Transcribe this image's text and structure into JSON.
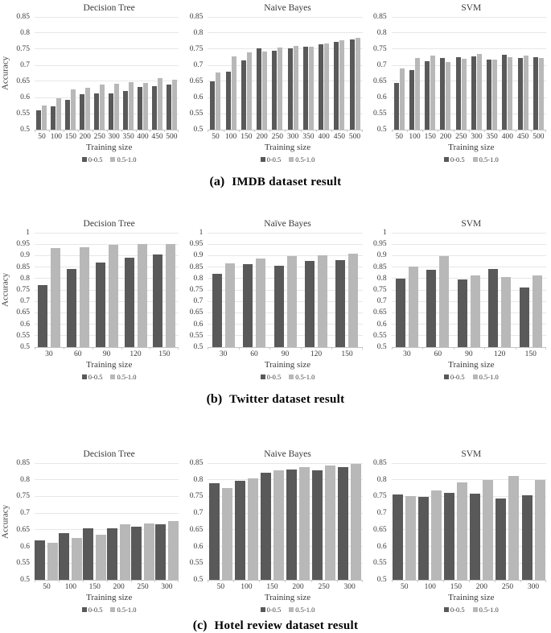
{
  "colors": {
    "series_dark": "#595959",
    "series_light": "#b8b8b8",
    "gridline": "#e7e7e7",
    "axis": "#c3c3c3",
    "text": "#3a3a3a"
  },
  "sections": [
    {
      "id": "imdb",
      "caption": {
        "label": "(a)",
        "text": "IMDB dataset result"
      },
      "chart_indexes": [
        0,
        1,
        2
      ]
    },
    {
      "id": "twitter",
      "caption": {
        "label": "(b)",
        "text": "Twitter dataset result"
      },
      "chart_indexes": [
        3,
        4,
        5
      ]
    },
    {
      "id": "hotel",
      "caption": {
        "label": "(c)",
        "text": "Hotel review dataset result"
      },
      "chart_indexes": [
        6,
        7,
        8
      ]
    }
  ],
  "chart_data": [
    {
      "type": "bar",
      "section": "imdb",
      "title": "Decision Tree",
      "xlabel": "Training size",
      "ylabel": "Accuracy",
      "ylim": [
        0.5,
        0.85
      ],
      "grid": true,
      "legend_position": "bottom",
      "yticks": [
        "0.85",
        "0.8",
        "0.75",
        "0.7",
        "0.65",
        "0.6",
        "0.55",
        "0.5"
      ],
      "categories": [
        "50",
        "100",
        "150",
        "200",
        "250",
        "300",
        "350",
        "400",
        "450",
        "500"
      ],
      "series": [
        {
          "name": "0-0.5",
          "values": [
            0.56,
            0.573,
            0.592,
            0.61,
            0.612,
            0.613,
            0.62,
            0.633,
            0.635,
            0.641
          ]
        },
        {
          "name": "0.5-1.0",
          "values": [
            0.576,
            0.598,
            0.625,
            0.63,
            0.64,
            0.643,
            0.648,
            0.645,
            0.66,
            0.655
          ]
        }
      ]
    },
    {
      "type": "bar",
      "section": "imdb",
      "title": "Naive Bayes",
      "xlabel": "Training size",
      "ylabel": "",
      "ylim": [
        0.5,
        0.85
      ],
      "grid": true,
      "legend_position": "bottom",
      "yticks": [
        "0.85",
        "0.8",
        "0.75",
        "0.7",
        "0.65",
        "0.6",
        "0.55",
        "0.5"
      ],
      "categories": [
        "50",
        "100",
        "150",
        "200",
        "250",
        "300",
        "350",
        "400",
        "450",
        "500"
      ],
      "series": [
        {
          "name": "0-0.5",
          "values": [
            0.65,
            0.68,
            0.715,
            0.752,
            0.746,
            0.752,
            0.758,
            0.764,
            0.772,
            0.781
          ]
        },
        {
          "name": "0.5-1.0",
          "values": [
            0.678,
            0.727,
            0.739,
            0.743,
            0.756,
            0.759,
            0.758,
            0.768,
            0.778,
            0.786
          ]
        }
      ]
    },
    {
      "type": "bar",
      "section": "imdb",
      "title": "SVM",
      "xlabel": "Training size",
      "ylabel": "",
      "ylim": [
        0.5,
        0.85
      ],
      "grid": true,
      "legend_position": "bottom",
      "yticks": [
        "0.85",
        "0.8",
        "0.75",
        "0.7",
        "0.65",
        "0.6",
        "0.55",
        "0.5"
      ],
      "categories": [
        "50",
        "100",
        "150",
        "200",
        "250",
        "300",
        "350",
        "400",
        "450",
        "500"
      ],
      "series": [
        {
          "name": "0-0.5",
          "values": [
            0.645,
            0.685,
            0.712,
            0.722,
            0.726,
            0.728,
            0.718,
            0.733,
            0.723,
            0.725
          ]
        },
        {
          "name": "0.5-1.0",
          "values": [
            0.69,
            0.723,
            0.73,
            0.711,
            0.721,
            0.734,
            0.717,
            0.726,
            0.731,
            0.723
          ]
        }
      ]
    },
    {
      "type": "bar",
      "section": "twitter",
      "title": "Decision Tree",
      "xlabel": "Training size",
      "ylabel": "Accuracy",
      "ylim": [
        0.5,
        1.0
      ],
      "grid": true,
      "legend_position": "bottom",
      "yticks": [
        "1",
        "0.95",
        "0.9",
        "0.85",
        "0.8",
        "0.75",
        "0.7",
        "0.65",
        "0.6",
        "0.55",
        "0.5"
      ],
      "categories": [
        "30",
        "60",
        "90",
        "120",
        "150"
      ],
      "series": [
        {
          "name": "0-0.5",
          "values": [
            0.77,
            0.84,
            0.87,
            0.89,
            0.905
          ]
        },
        {
          "name": "0.5-1.0",
          "values": [
            0.932,
            0.937,
            0.947,
            0.952,
            0.95
          ]
        }
      ]
    },
    {
      "type": "bar",
      "section": "twitter",
      "title": "Naïve Bayes",
      "xlabel": "Training size",
      "ylabel": "",
      "ylim": [
        0.5,
        1.0
      ],
      "grid": true,
      "legend_position": "bottom",
      "yticks": [
        "1",
        "0.95",
        "0.9",
        "0.85",
        "0.8",
        "0.75",
        "0.7",
        "0.65",
        "0.6",
        "0.55",
        "0.5"
      ],
      "categories": [
        "30",
        "60",
        "90",
        "120",
        "150"
      ],
      "series": [
        {
          "name": "0-0.5",
          "values": [
            0.82,
            0.864,
            0.855,
            0.877,
            0.88
          ]
        },
        {
          "name": "0.5-1.0",
          "values": [
            0.868,
            0.886,
            0.898,
            0.902,
            0.908
          ]
        }
      ]
    },
    {
      "type": "bar",
      "section": "twitter",
      "title": "SVM",
      "xlabel": "Training size",
      "ylabel": "",
      "ylim": [
        0.5,
        1.0
      ],
      "grid": true,
      "legend_position": "bottom",
      "yticks": [
        "1",
        "0.95",
        "0.9",
        "0.85",
        "0.8",
        "0.75",
        "0.7",
        "0.65",
        "0.6",
        "0.55",
        "0.5"
      ],
      "categories": [
        "30",
        "60",
        "90",
        "120",
        "150"
      ],
      "series": [
        {
          "name": "0-0.5",
          "values": [
            0.8,
            0.837,
            0.795,
            0.842,
            0.762
          ]
        },
        {
          "name": "0.5-1.0",
          "values": [
            0.853,
            0.897,
            0.814,
            0.807,
            0.814
          ]
        }
      ]
    },
    {
      "type": "bar",
      "section": "hotel",
      "title": "Decision Tree",
      "xlabel": "Training size",
      "ylabel": "Accuracy",
      "ylim": [
        0.5,
        0.85
      ],
      "grid": true,
      "legend_position": "bottom",
      "yticks": [
        "0.85",
        "0.8",
        "0.75",
        "0.7",
        "0.65",
        "0.6",
        "0.55",
        "0.5"
      ],
      "categories": [
        "50",
        "100",
        "150",
        "200",
        "250",
        "300"
      ],
      "series": [
        {
          "name": "0-0.5",
          "values": [
            0.618,
            0.639,
            0.655,
            0.655,
            0.66,
            0.667
          ]
        },
        {
          "name": "0.5-1.0",
          "values": [
            0.61,
            0.625,
            0.635,
            0.666,
            0.668,
            0.677
          ]
        }
      ]
    },
    {
      "type": "bar",
      "section": "hotel",
      "title": "Naive Bayes",
      "xlabel": "Training size",
      "ylabel": "",
      "ylim": [
        0.5,
        0.85
      ],
      "grid": true,
      "legend_position": "bottom",
      "yticks": [
        "0.85",
        "0.8",
        "0.75",
        "0.7",
        "0.65",
        "0.6",
        "0.55",
        "0.5"
      ],
      "categories": [
        "50",
        "100",
        "150",
        "200",
        "250",
        "300"
      ],
      "series": [
        {
          "name": "0-0.5",
          "values": [
            0.789,
            0.798,
            0.82,
            0.83,
            0.828,
            0.839
          ]
        },
        {
          "name": "0.5-1.0",
          "values": [
            0.775,
            0.805,
            0.828,
            0.838,
            0.842,
            0.848
          ]
        }
      ]
    },
    {
      "type": "bar",
      "section": "hotel",
      "title": "SVM",
      "xlabel": "Training size",
      "ylabel": "",
      "ylim": [
        0.5,
        0.85
      ],
      "grid": true,
      "legend_position": "bottom",
      "yticks": [
        "0.85",
        "0.8",
        "0.75",
        "0.7",
        "0.65",
        "0.6",
        "0.55",
        "0.5"
      ],
      "categories": [
        "50",
        "100",
        "150",
        "200",
        "250",
        "300"
      ],
      "series": [
        {
          "name": "0-0.5",
          "values": [
            0.757,
            0.748,
            0.76,
            0.759,
            0.745,
            0.754
          ]
        },
        {
          "name": "0.5-1.0",
          "values": [
            0.75,
            0.767,
            0.792,
            0.8,
            0.812,
            0.8
          ]
        }
      ]
    }
  ]
}
